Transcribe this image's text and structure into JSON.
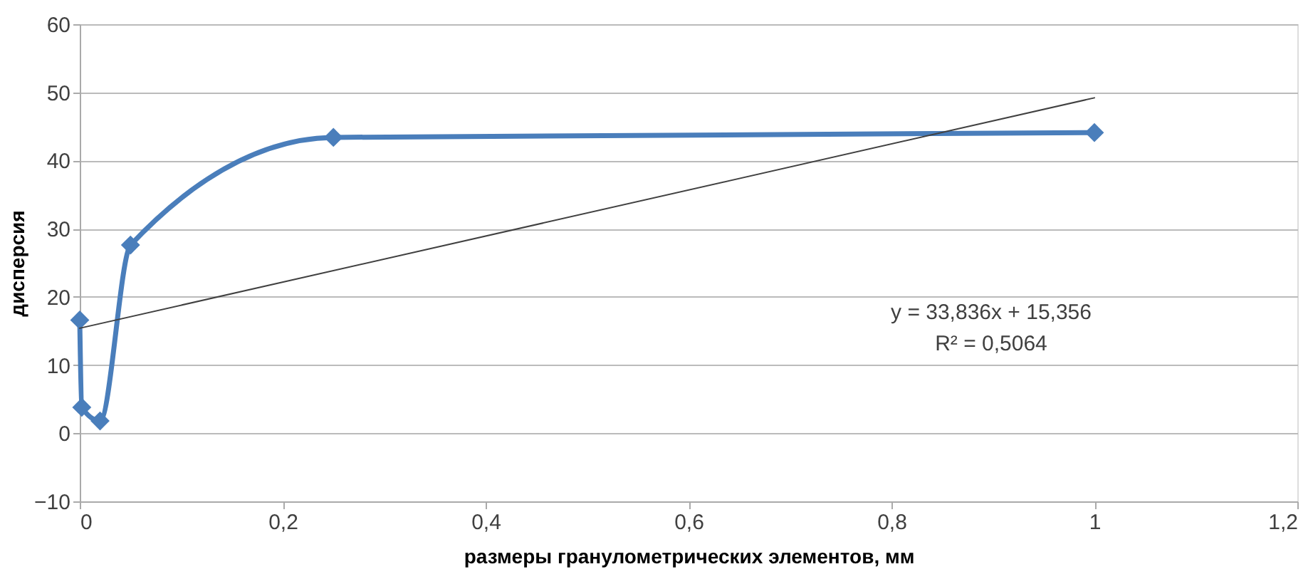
{
  "chart_data": {
    "type": "line",
    "xlabel": "размеры гранулометрических элементов, мм",
    "ylabel": "дисперсия",
    "x": [
      0,
      0.002,
      0.02,
      0.05,
      0.25,
      1
    ],
    "series": [
      {
        "color": "#4a7ebb",
        "values": [
          16.6,
          3.8,
          1.8,
          27.6,
          43.4,
          44.1
        ],
        "marker": "diamond",
        "line_style": "solid"
      },
      {
        "type": "line",
        "color": "#404040",
        "x": [
          0,
          1
        ],
        "values": [
          15.4,
          49.2
        ],
        "marker": "none",
        "line_style": "solid"
      }
    ],
    "xlim": [
      0,
      1.2
    ],
    "xticks": [
      {
        "value": 0,
        "label": "0"
      },
      {
        "value": 0.2,
        "label": "0,2"
      },
      {
        "value": 0.4,
        "label": "0,4"
      },
      {
        "value": 0.6,
        "label": "0,6"
      },
      {
        "value": 0.8,
        "label": "0,8"
      },
      {
        "value": 1,
        "label": "1"
      },
      {
        "value": 1.2,
        "label": "1,2"
      }
    ],
    "ylim": [
      -10,
      60
    ],
    "yticks": [
      -10,
      0,
      10,
      20,
      30,
      40,
      50,
      60
    ],
    "grid": "y",
    "annotations": [
      "y = 33,836x + 15,356",
      "R² = 0,5064"
    ]
  }
}
